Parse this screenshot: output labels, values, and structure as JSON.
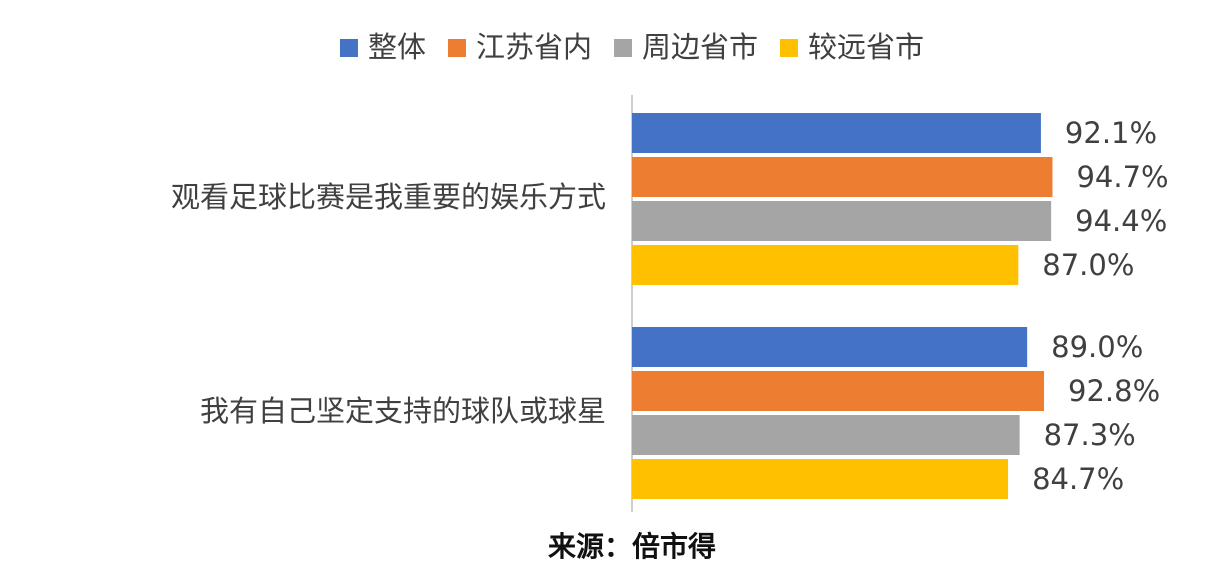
{
  "chart_data": {
    "type": "hbar",
    "categories": [
      "观看足球比赛是我重要的娱乐方式",
      "我有自己坚定支持的球队或球星"
    ],
    "series": [
      {
        "name": "整体",
        "color": "#4472c4",
        "values": [
          92.1,
          89.0
        ],
        "value_labels": [
          "92.1%",
          "89.0%"
        ]
      },
      {
        "name": "江苏省内",
        "color": "#ed7d31",
        "values": [
          94.7,
          92.8
        ],
        "value_labels": [
          "94.7%",
          "92.8%"
        ]
      },
      {
        "name": "周边省市",
        "color": "#a5a5a5",
        "values": [
          94.4,
          87.3
        ],
        "value_labels": [
          "94.4%",
          "87.3%"
        ]
      },
      {
        "name": "较远省市",
        "color": "#ffc000",
        "values": [
          87.0,
          84.7
        ],
        "value_labels": [
          "87.0%",
          "84.7%"
        ]
      }
    ],
    "xlim": [
      0,
      100
    ],
    "legend": "top",
    "source": "来源：倍市得"
  }
}
